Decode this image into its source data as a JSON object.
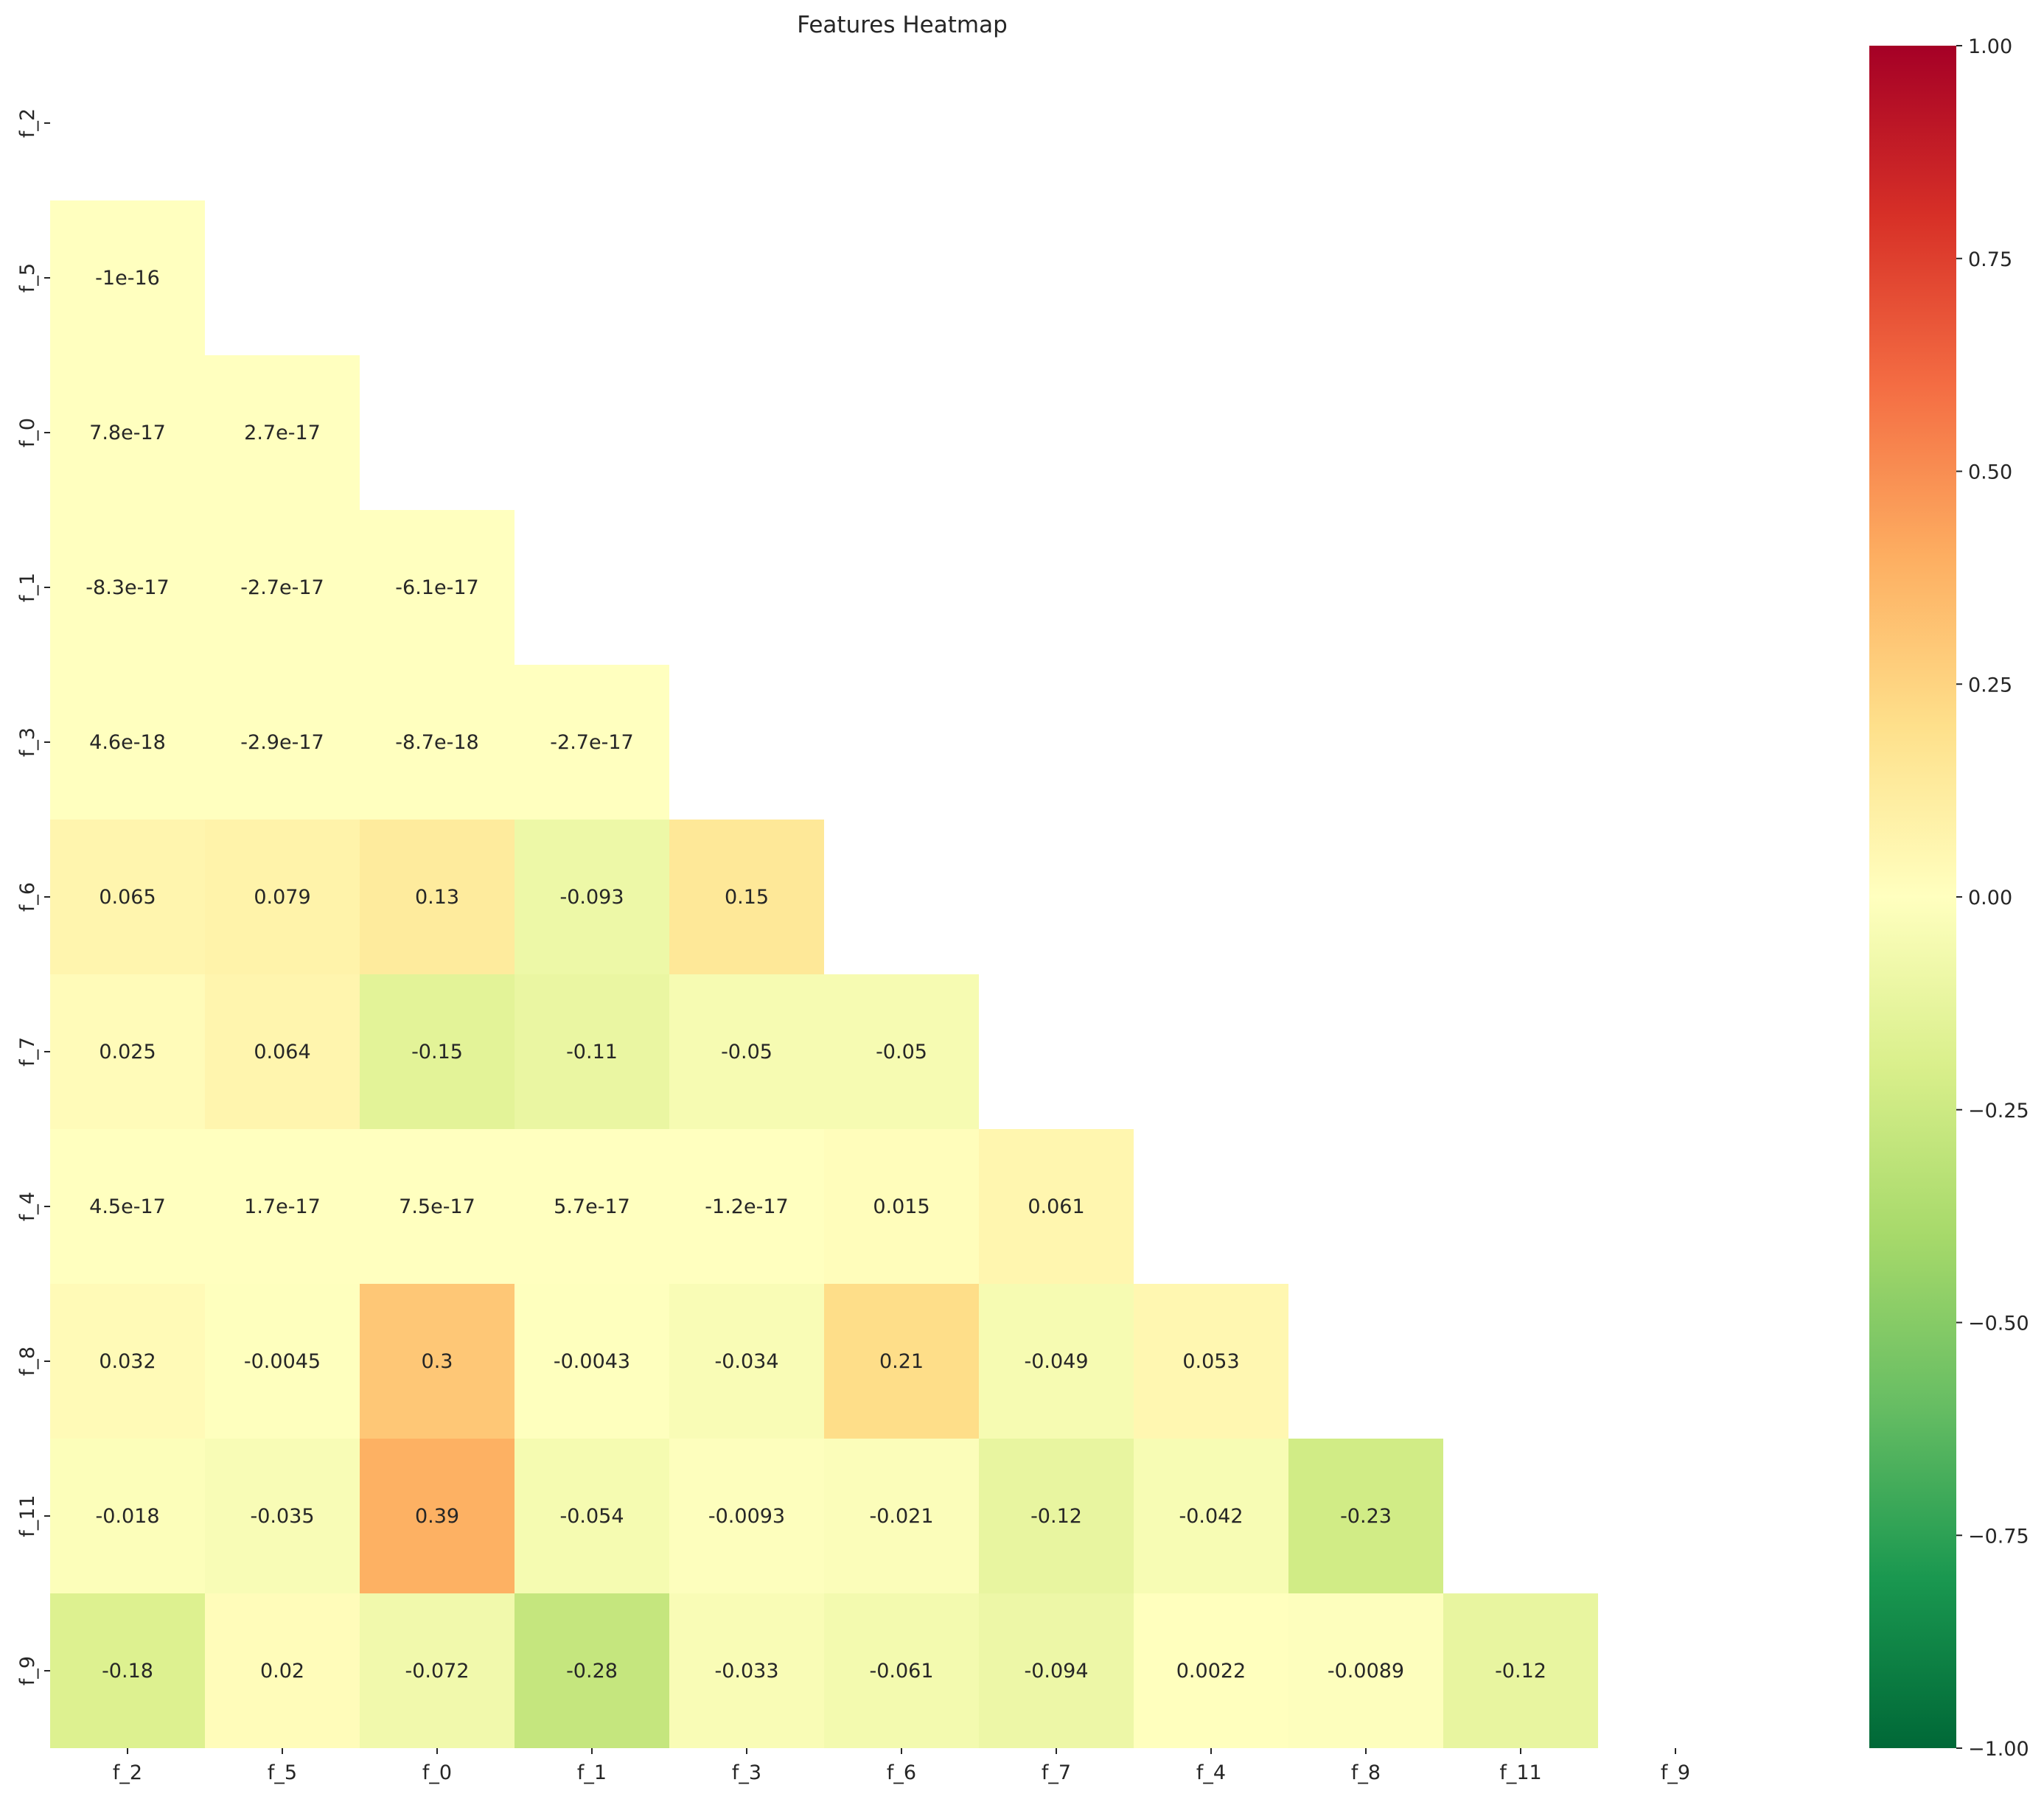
{
  "chart_data": {
    "type": "heatmap",
    "title": "Features Heatmap",
    "xlabel": "",
    "ylabel": "",
    "labels": [
      "f_2",
      "f_5",
      "f_0",
      "f_1",
      "f_3",
      "f_6",
      "f_7",
      "f_4",
      "f_8",
      "f_11",
      "f_9"
    ],
    "mask": "upper-triangle-including-diagonal",
    "values": [
      [
        null,
        null,
        null,
        null,
        null,
        null,
        null,
        null,
        null,
        null,
        null
      ],
      [
        -1e-16,
        null,
        null,
        null,
        null,
        null,
        null,
        null,
        null,
        null,
        null
      ],
      [
        7.8e-17,
        2.7e-17,
        null,
        null,
        null,
        null,
        null,
        null,
        null,
        null,
        null
      ],
      [
        -8.3e-17,
        -2.7e-17,
        -6.1e-17,
        null,
        null,
        null,
        null,
        null,
        null,
        null,
        null
      ],
      [
        4.6e-18,
        -2.9e-17,
        -8.7e-18,
        -2.7e-17,
        null,
        null,
        null,
        null,
        null,
        null,
        null
      ],
      [
        0.065,
        0.079,
        0.13,
        -0.093,
        0.15,
        null,
        null,
        null,
        null,
        null,
        null
      ],
      [
        0.025,
        0.064,
        -0.15,
        -0.11,
        -0.05,
        -0.05,
        null,
        null,
        null,
        null,
        null
      ],
      [
        4.5e-17,
        1.7e-17,
        7.5e-17,
        5.7e-17,
        -1.2e-17,
        0.015,
        0.061,
        null,
        null,
        null,
        null
      ],
      [
        0.032,
        -0.0045,
        0.3,
        -0.0043,
        -0.034,
        0.21,
        -0.049,
        0.053,
        null,
        null,
        null
      ],
      [
        -0.018,
        -0.035,
        0.39,
        -0.054,
        -0.0093,
        -0.021,
        -0.12,
        -0.042,
        -0.23,
        null,
        null
      ],
      [
        -0.18,
        0.02,
        -0.072,
        -0.28,
        -0.033,
        -0.061,
        -0.094,
        0.0022,
        -0.0089,
        -0.12,
        null
      ]
    ],
    "annotations": [
      [
        null,
        null,
        null,
        null,
        null,
        null,
        null,
        null,
        null,
        null,
        null
      ],
      [
        "-1e-16",
        null,
        null,
        null,
        null,
        null,
        null,
        null,
        null,
        null,
        null
      ],
      [
        "7.8e-17",
        "2.7e-17",
        null,
        null,
        null,
        null,
        null,
        null,
        null,
        null,
        null
      ],
      [
        "-8.3e-17",
        "-2.7e-17",
        "-6.1e-17",
        null,
        null,
        null,
        null,
        null,
        null,
        null,
        null
      ],
      [
        "4.6e-18",
        "-2.9e-17",
        "-8.7e-18",
        "-2.7e-17",
        null,
        null,
        null,
        null,
        null,
        null,
        null
      ],
      [
        "0.065",
        "0.079",
        "0.13",
        "-0.093",
        "0.15",
        null,
        null,
        null,
        null,
        null,
        null
      ],
      [
        "0.025",
        "0.064",
        "-0.15",
        "-0.11",
        "-0.05",
        "-0.05",
        null,
        null,
        null,
        null,
        null
      ],
      [
        "4.5e-17",
        "1.7e-17",
        "7.5e-17",
        "5.7e-17",
        "-1.2e-17",
        "0.015",
        "0.061",
        null,
        null,
        null,
        null
      ],
      [
        "0.032",
        "-0.0045",
        "0.3",
        "-0.0043",
        "-0.034",
        "0.21",
        "-0.049",
        "0.053",
        null,
        null,
        null
      ],
      [
        "-0.018",
        "-0.035",
        "0.39",
        "-0.054",
        "-0.0093",
        "-0.021",
        "-0.12",
        "-0.042",
        "-0.23",
        null,
        null
      ],
      [
        "-0.18",
        "0.02",
        "-0.072",
        "-0.28",
        "-0.033",
        "-0.061",
        "-0.094",
        "0.0022",
        "-0.0089",
        "-0.12",
        null
      ]
    ],
    "colorbar": {
      "colormap": "RdYlGn_r",
      "range": [
        -1.0,
        1.0
      ],
      "ticks": [
        1.0,
        0.75,
        0.5,
        0.25,
        0.0,
        -0.25,
        -0.5,
        -0.75,
        -1.0
      ],
      "tick_labels": [
        "1.00",
        "0.75",
        "0.50",
        "0.25",
        "0.00",
        "−0.25",
        "−0.50",
        "−0.75",
        "−1.00"
      ],
      "placement": "right"
    },
    "grid": false
  }
}
